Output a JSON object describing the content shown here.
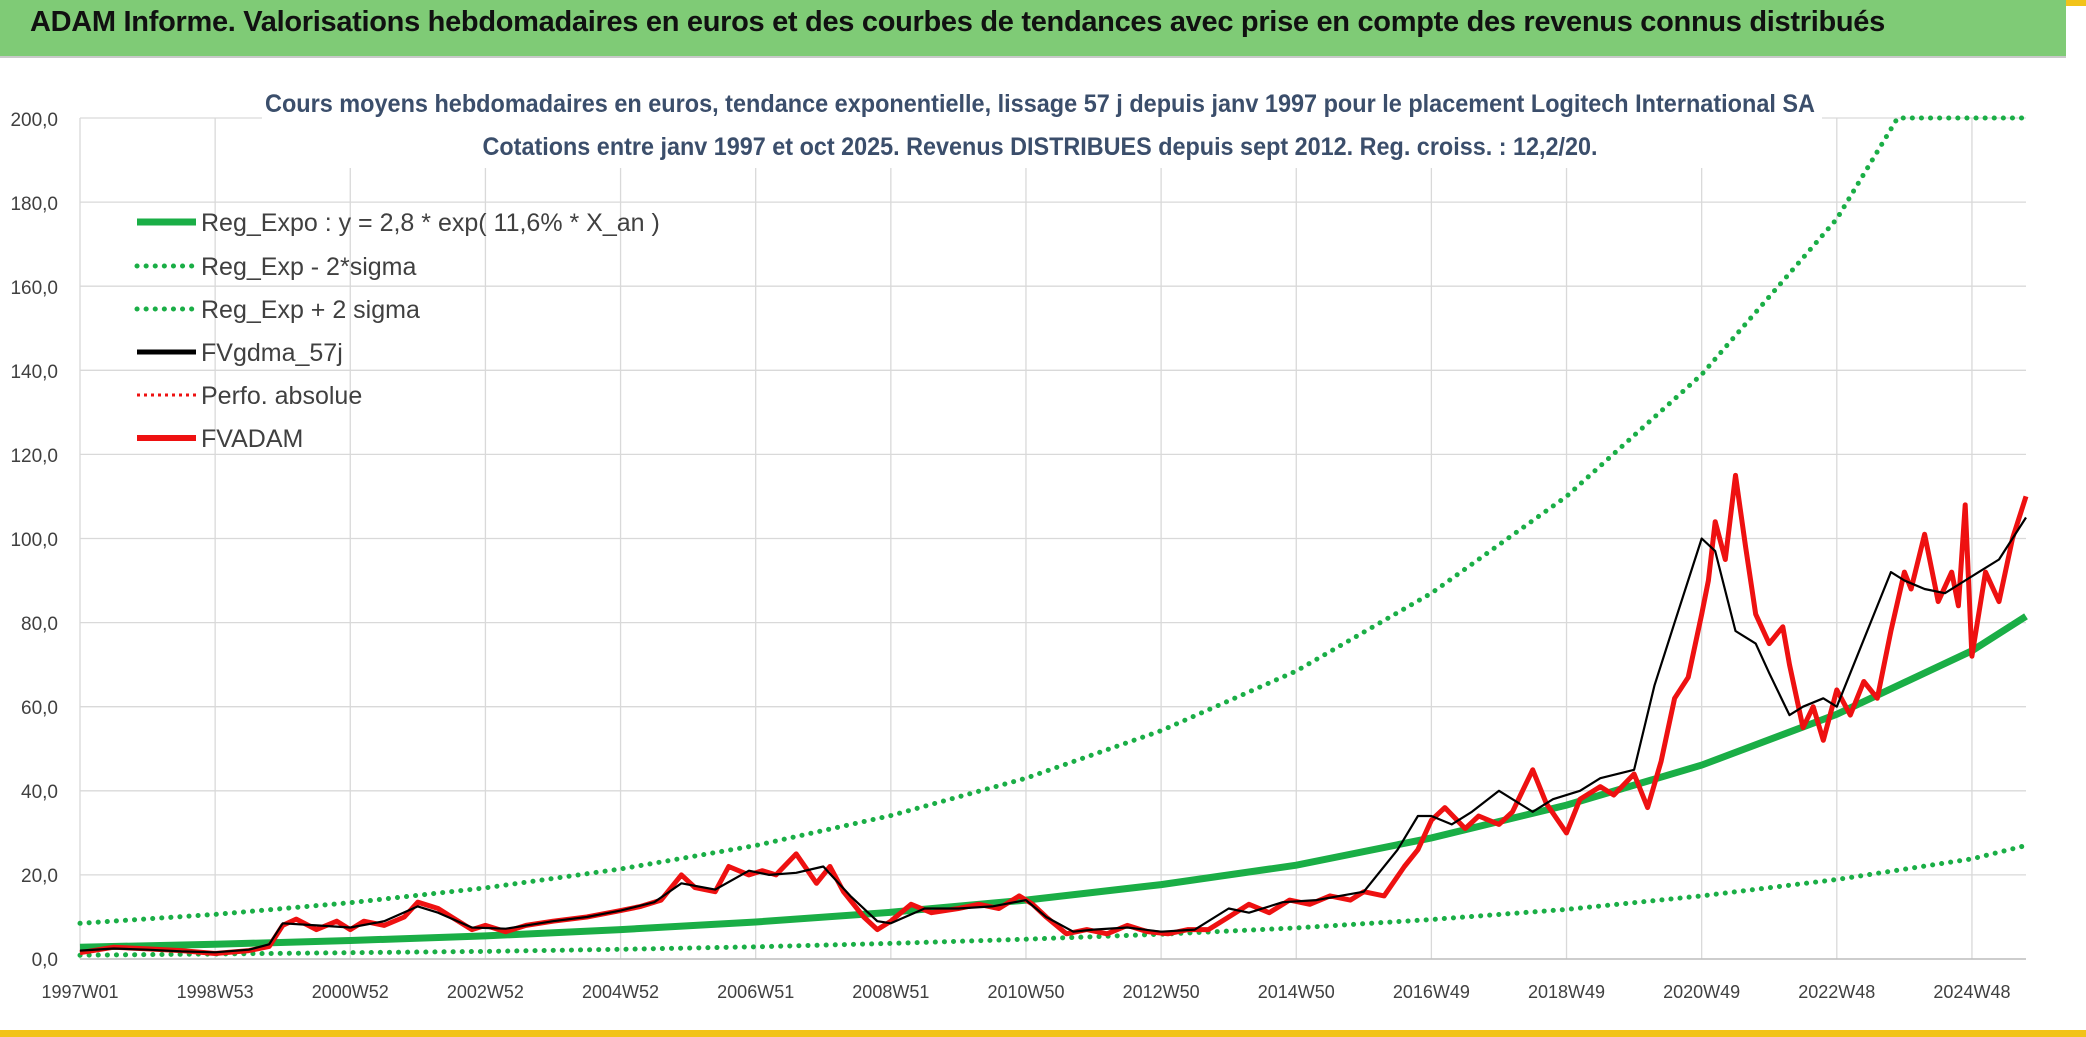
{
  "banner": {
    "title": "ADAM Informe. Valorisations hebdomadaires en euros et des courbes de tendances avec prise en compte des revenus connus distribués"
  },
  "colors": {
    "banner_bg": "#7fcb76",
    "accent": "#f2c319",
    "trend": "#1aae46",
    "sigma": "#1aae46",
    "gdma": "#000000",
    "adam": "#ee1111",
    "perfo": "#ee1111",
    "grid": "#d9d9d9"
  },
  "chart_data": {
    "type": "line",
    "title": "Cours moyens hebdomadaires en euros, tendance exponentielle, lissage 57 j depuis janv 1997 pour le placement Logitech International SA",
    "subtitle": "Cotations entre janv 1997 et oct 2025. Revenus DISTRIBUES depuis sept 2012. Reg. croiss. : 12,2/20.",
    "ylim": [
      0,
      200
    ],
    "xlim": [
      1997.0,
      2025.8
    ],
    "y_ticks": [
      "0,0",
      "20,0",
      "40,0",
      "60,0",
      "80,0",
      "100,0",
      "120,0",
      "140,0",
      "160,0",
      "180,0",
      "200,0"
    ],
    "x_ticks": [
      {
        "label": "1997W01",
        "x": 1997.0
      },
      {
        "label": "1998W53",
        "x": 1999.0
      },
      {
        "label": "2000W52",
        "x": 2001.0
      },
      {
        "label": "2002W52",
        "x": 2003.0
      },
      {
        "label": "2004W52",
        "x": 2005.0
      },
      {
        "label": "2006W51",
        "x": 2007.0
      },
      {
        "label": "2008W51",
        "x": 2009.0
      },
      {
        "label": "2010W50",
        "x": 2011.0
      },
      {
        "label": "2012W50",
        "x": 2013.0
      },
      {
        "label": "2014W50",
        "x": 2015.0
      },
      {
        "label": "2016W49",
        "x": 2017.0
      },
      {
        "label": "2018W49",
        "x": 2019.0
      },
      {
        "label": "2020W49",
        "x": 2021.0
      },
      {
        "label": "2022W48",
        "x": 2023.0
      },
      {
        "label": "2024W48",
        "x": 2025.0
      }
    ],
    "legend": [
      {
        "key": "trend",
        "label": "Reg_Expo : y = 2,8 * exp( 11,6% *  X_an )",
        "style": "solid-thick"
      },
      {
        "key": "lower",
        "label": "Reg_Exp - 2*sigma",
        "style": "dotted-green"
      },
      {
        "key": "upper",
        "label": "Reg_Exp + 2 sigma",
        "style": "dotted-green"
      },
      {
        "key": "gdma",
        "label": "FVgdma_57j",
        "style": "solid-black"
      },
      {
        "key": "perfo",
        "label": "Perfo. absolue",
        "style": "dotted-red"
      },
      {
        "key": "adam",
        "label": "FVADAM",
        "style": "solid-red"
      }
    ],
    "series": [
      {
        "name": "Reg_Expo",
        "x": [
          1997.0,
          1999.0,
          2001.0,
          2003.0,
          2005.0,
          2007.0,
          2009.0,
          2011.0,
          2013.0,
          2015.0,
          2017.0,
          2019.0,
          2021.0,
          2023.0,
          2025.0,
          2025.8
        ],
        "values": [
          2.8,
          3.5,
          4.4,
          5.5,
          7.0,
          8.8,
          11.1,
          14.0,
          17.7,
          22.3,
          28.8,
          36.6,
          46.1,
          58.2,
          73.3,
          81.5
        ]
      },
      {
        "name": "Reg_Exp - 2*sigma",
        "x": [
          1997.0,
          1999.0,
          2001.0,
          2003.0,
          2005.0,
          2007.0,
          2009.0,
          2011.0,
          2013.0,
          2015.0,
          2017.0,
          2019.0,
          2021.0,
          2023.0,
          2025.0,
          2025.8
        ],
        "values": [
          0.9,
          1.2,
          1.5,
          1.8,
          2.3,
          2.9,
          3.7,
          4.7,
          5.9,
          7.4,
          9.4,
          11.8,
          15.0,
          18.9,
          23.8,
          27.0
        ]
      },
      {
        "name": "Reg_Exp + 2 sigma",
        "x": [
          1997.0,
          1999.0,
          2001.0,
          2003.0,
          2005.0,
          2007.0,
          2009.0,
          2011.0,
          2013.0,
          2015.0,
          2017.0,
          2019.0,
          2021.0,
          2023.0,
          2023.9,
          2025.8
        ],
        "values": [
          8.5,
          10.6,
          13.4,
          16.9,
          21.4,
          27.0,
          34.1,
          43.0,
          54.3,
          68.5,
          87.0,
          110.0,
          139.0,
          176.0,
          200.0,
          200.0
        ]
      },
      {
        "name": "FVgdma_57j",
        "x": [
          1997.0,
          1997.5,
          1998.0,
          1998.5,
          1999.0,
          1999.5,
          1999.8,
          2000.0,
          2000.5,
          2001.0,
          2001.5,
          2002.0,
          2002.3,
          2002.8,
          2003.3,
          2004.0,
          2004.5,
          2005.0,
          2005.5,
          2005.9,
          2006.4,
          2006.9,
          2007.2,
          2007.6,
          2008.0,
          2008.4,
          2008.8,
          2009.0,
          2009.5,
          2010.0,
          2010.5,
          2011.0,
          2011.3,
          2011.7,
          2012.0,
          2012.5,
          2013.0,
          2013.5,
          2014.0,
          2014.3,
          2014.8,
          2015.3,
          2016.0,
          2016.5,
          2016.8,
          2017.0,
          2017.3,
          2017.6,
          2018.0,
          2018.5,
          2018.8,
          2019.2,
          2019.5,
          2020.0,
          2020.3,
          2020.6,
          2021.0,
          2021.2,
          2021.5,
          2021.8,
          2022.0,
          2022.3,
          2022.5,
          2022.8,
          2023.0,
          2023.5,
          2023.8,
          2024.0,
          2024.3,
          2024.6,
          2024.9,
          2025.1,
          2025.4,
          2025.8
        ],
        "values": [
          2.0,
          2.5,
          2.2,
          1.8,
          1.6,
          2.2,
          3.5,
          8.5,
          8.0,
          7.5,
          9.0,
          12.5,
          11.0,
          7.5,
          7.2,
          9.0,
          10.0,
          11.5,
          13.5,
          18.0,
          16.5,
          21.0,
          20.0,
          20.5,
          22.0,
          15.0,
          9.0,
          8.5,
          12.0,
          12.0,
          12.5,
          14.0,
          10.0,
          6.5,
          7.0,
          7.5,
          6.5,
          7.0,
          12.0,
          11.0,
          13.5,
          14.0,
          16.0,
          26.0,
          34.0,
          34.0,
          32.0,
          35.0,
          40.0,
          35.0,
          38.0,
          40.0,
          43.0,
          45.0,
          65.0,
          80.0,
          100.0,
          97.0,
          78.0,
          75.0,
          68.0,
          58.0,
          60.0,
          62.0,
          60.0,
          80.0,
          92.0,
          90.0,
          88.0,
          87.0,
          90.0,
          92.0,
          95.0,
          105.0
        ]
      },
      {
        "name": "FVADAM",
        "x": [
          1997.0,
          1997.5,
          1998.0,
          1998.5,
          1999.0,
          1999.5,
          1999.8,
          2000.0,
          2000.2,
          2000.5,
          2000.8,
          2001.0,
          2001.2,
          2001.5,
          2001.8,
          2002.0,
          2002.3,
          2002.5,
          2002.8,
          2003.0,
          2003.3,
          2003.6,
          2004.0,
          2004.5,
          2005.0,
          2005.3,
          2005.6,
          2005.9,
          2006.1,
          2006.4,
          2006.6,
          2006.9,
          2007.1,
          2007.3,
          2007.6,
          2007.9,
          2008.1,
          2008.3,
          2008.6,
          2008.8,
          2009.0,
          2009.3,
          2009.6,
          2010.0,
          2010.3,
          2010.6,
          2010.9,
          2011.1,
          2011.3,
          2011.6,
          2011.9,
          2012.2,
          2012.5,
          2012.8,
          2013.1,
          2013.4,
          2013.7,
          2014.0,
          2014.3,
          2014.6,
          2014.9,
          2015.2,
          2015.5,
          2015.8,
          2016.0,
          2016.3,
          2016.6,
          2016.8,
          2017.0,
          2017.2,
          2017.5,
          2017.7,
          2018.0,
          2018.2,
          2018.5,
          2018.7,
          2019.0,
          2019.2,
          2019.5,
          2019.7,
          2020.0,
          2020.2,
          2020.4,
          2020.6,
          2020.8,
          2021.0,
          2021.1,
          2021.2,
          2021.35,
          2021.5,
          2021.65,
          2021.8,
          2022.0,
          2022.2,
          2022.3,
          2022.5,
          2022.65,
          2022.8,
          2023.0,
          2023.2,
          2023.4,
          2023.6,
          2023.8,
          2024.0,
          2024.1,
          2024.3,
          2024.5,
          2024.7,
          2024.8,
          2024.9,
          2025.0,
          2025.2,
          2025.4,
          2025.6,
          2025.8
        ],
        "values": [
          1.5,
          2.8,
          2.4,
          2.0,
          1.3,
          2.0,
          3.0,
          8.0,
          9.5,
          7.0,
          9.0,
          7.0,
          9.0,
          8.0,
          10.0,
          13.5,
          12.0,
          10.0,
          7.0,
          8.0,
          6.5,
          8.0,
          9.0,
          10.0,
          11.5,
          12.5,
          14.0,
          20.0,
          17.0,
          16.0,
          22.0,
          20.0,
          21.0,
          20.0,
          25.0,
          18.0,
          22.0,
          16.0,
          10.0,
          7.0,
          9.0,
          13.0,
          11.0,
          12.0,
          13.0,
          12.0,
          15.0,
          13.0,
          10.0,
          6.0,
          7.0,
          6.0,
          8.0,
          6.5,
          6.0,
          7.0,
          7.0,
          10.0,
          13.0,
          11.0,
          14.0,
          13.0,
          15.0,
          14.0,
          16.0,
          15.0,
          22.0,
          26.0,
          33.0,
          36.0,
          31.0,
          34.0,
          32.0,
          35.0,
          45.0,
          37.0,
          30.0,
          38.0,
          41.0,
          39.0,
          44.0,
          36.0,
          47.0,
          62.0,
          67.0,
          82.0,
          90.0,
          104.0,
          95.0,
          115.0,
          98.0,
          82.0,
          75.0,
          79.0,
          70.0,
          55.0,
          60.0,
          52.0,
          64.0,
          58.0,
          66.0,
          62.0,
          78.0,
          92.0,
          88.0,
          101.0,
          85.0,
          92.0,
          84.0,
          108.0,
          72.0,
          92.0,
          85.0,
          100.0,
          110.0
        ]
      }
    ]
  }
}
